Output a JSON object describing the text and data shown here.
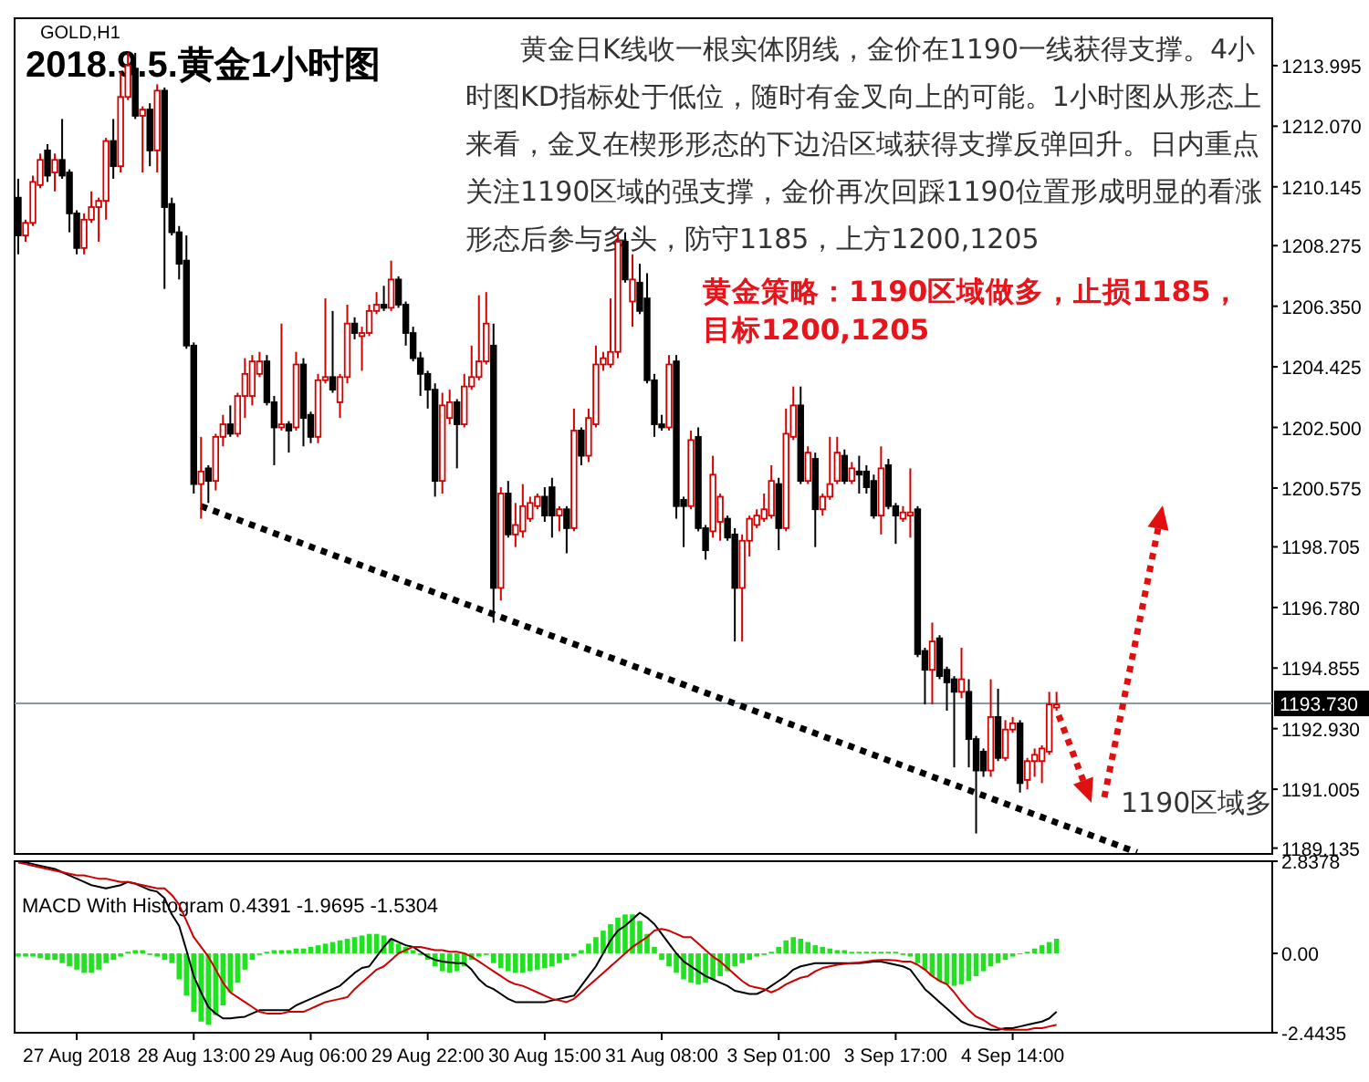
{
  "chart_data": [
    {
      "type": "candlestick",
      "title": "2018.9.5.黄金1小时图",
      "subtitle": "GOLD,H1",
      "categories": [
        null,
        null,
        null,
        null,
        null,
        null,
        null,
        null,
        null,
        null,
        null,
        null,
        null,
        null,
        null,
        null,
        null,
        null,
        null,
        null,
        null,
        null,
        null,
        null,
        null,
        null,
        null,
        null,
        null,
        null,
        null,
        null,
        null,
        null,
        null,
        null,
        null,
        null,
        null,
        null,
        null,
        null,
        null,
        null,
        null,
        null,
        null,
        null,
        null,
        null,
        null,
        null,
        null,
        null,
        null,
        null,
        null,
        null,
        null,
        null,
        null,
        null,
        null,
        null,
        null,
        null,
        null,
        null,
        null,
        null,
        null,
        null,
        null,
        null,
        null,
        null,
        null,
        null,
        null,
        null,
        null,
        null,
        null,
        null,
        null,
        null,
        null,
        null,
        null,
        null,
        null,
        null,
        null,
        null,
        null,
        null,
        null,
        null,
        null,
        null,
        null,
        null,
        null,
        null,
        null,
        null,
        null,
        null,
        null,
        null,
        null,
        null,
        null,
        null,
        null,
        null,
        null,
        null,
        null,
        null,
        null,
        null,
        null,
        null,
        null,
        null,
        null,
        null,
        null,
        null,
        null,
        null,
        null,
        null,
        null,
        null,
        null,
        null,
        null,
        null,
        null,
        null,
        null,
        null,
        null,
        null,
        null,
        null,
        null,
        null,
        null,
        null,
        null,
        null,
        null,
        null,
        null,
        null,
        null,
        null,
        null,
        null,
        null,
        null,
        null,
        null,
        null,
        null,
        null,
        null,
        null,
        null
      ],
      "ohlc": [
        [
          1209.8,
          1210.4,
          1208.0,
          1208.6
        ],
        [
          1208.6,
          1209.1,
          1208.4,
          1209.0
        ],
        [
          1209.0,
          1210.5,
          1208.9,
          1210.3
        ],
        [
          1210.2,
          1211.2,
          1210.1,
          1211.0
        ],
        [
          1211.3,
          1211.5,
          1210.3,
          1210.5
        ],
        [
          1210.6,
          1211.2,
          1210.0,
          1211.0
        ],
        [
          1211.0,
          1212.3,
          1210.4,
          1210.5
        ],
        [
          1210.6,
          1210.7,
          1208.7,
          1209.3
        ],
        [
          1209.3,
          1209.4,
          1208.0,
          1208.2
        ],
        [
          1208.2,
          1209.3,
          1208.0,
          1209.1
        ],
        [
          1209.1,
          1210.0,
          1209.0,
          1209.5
        ],
        [
          1209.5,
          1209.8,
          1208.4,
          1209.7
        ],
        [
          1209.7,
          1211.7,
          1209.1,
          1211.6
        ],
        [
          1211.6,
          1212.3,
          1210.4,
          1210.8
        ],
        [
          1210.8,
          1213.8,
          1210.6,
          1213.0
        ],
        [
          1213.0,
          1214.4,
          1212.9,
          1214.0
        ],
        [
          1213.9,
          1214.4,
          1212.3,
          1212.4
        ],
        [
          1212.4,
          1212.7,
          1210.6,
          1212.6
        ],
        [
          1212.6,
          1212.8,
          1210.8,
          1211.3
        ],
        [
          1211.3,
          1213.4,
          1210.6,
          1213.2
        ],
        [
          1213.2,
          1213.3,
          1206.9,
          1209.5
        ],
        [
          1209.6,
          1209.8,
          1208.6,
          1208.7
        ],
        [
          1208.7,
          1208.9,
          1207.2,
          1207.7
        ],
        [
          1207.8,
          1208.6,
          1205.0,
          1205.1
        ],
        [
          1205.1,
          1205.2,
          1200.4,
          1200.7
        ],
        [
          1200.7,
          1202.2,
          1199.6,
          1201.1
        ],
        [
          1201.2,
          1201.3,
          1200.1,
          1200.8
        ],
        [
          1200.8,
          1202.3,
          1200.5,
          1202.2
        ],
        [
          1202.2,
          1202.9,
          1201.9,
          1202.6
        ],
        [
          1202.6,
          1203.2,
          1202.2,
          1202.3
        ],
        [
          1202.3,
          1203.6,
          1202.2,
          1203.5
        ],
        [
          1203.5,
          1204.7,
          1202.8,
          1204.2
        ],
        [
          1203.5,
          1204.8,
          1203.2,
          1204.6
        ],
        [
          1204.2,
          1204.9,
          1204.1,
          1204.6
        ],
        [
          1204.6,
          1204.8,
          1203.2,
          1203.3
        ],
        [
          1203.3,
          1203.5,
          1201.3,
          1202.5
        ],
        [
          1202.5,
          1205.8,
          1202.4,
          1202.6
        ],
        [
          1202.6,
          1202.7,
          1201.7,
          1202.4
        ],
        [
          1202.5,
          1204.9,
          1202.4,
          1204.5
        ],
        [
          1204.5,
          1204.7,
          1201.9,
          1202.8
        ],
        [
          1202.9,
          1203.0,
          1202.0,
          1202.2
        ],
        [
          1202.2,
          1204.2,
          1202.0,
          1204.0
        ],
        [
          1204.0,
          1206.6,
          1203.9,
          1204.1
        ],
        [
          1204.1,
          1206.2,
          1203.6,
          1203.7
        ],
        [
          1203.3,
          1204.2,
          1202.8,
          1204.1
        ],
        [
          1204.1,
          1206.4,
          1203.9,
          1205.8
        ],
        [
          1205.8,
          1206.0,
          1205.3,
          1205.5
        ],
        [
          1205.4,
          1205.7,
          1204.3,
          1205.5
        ],
        [
          1205.5,
          1206.4,
          1205.4,
          1206.2
        ],
        [
          1206.2,
          1206.8,
          1206.1,
          1206.4
        ],
        [
          1206.4,
          1207.0,
          1206.2,
          1206.3
        ],
        [
          1206.3,
          1207.8,
          1206.2,
          1207.2
        ],
        [
          1207.2,
          1207.3,
          1206.3,
          1206.4
        ],
        [
          1206.4,
          1206.5,
          1205.1,
          1205.5
        ],
        [
          1205.5,
          1205.7,
          1204.6,
          1204.7
        ],
        [
          1204.7,
          1204.9,
          1203.5,
          1204.2
        ],
        [
          1204.2,
          1204.3,
          1203.1,
          1203.7
        ],
        [
          1203.7,
          1203.9,
          1200.3,
          1200.8
        ],
        [
          1200.8,
          1203.6,
          1200.4,
          1203.2
        ],
        [
          1202.8,
          1203.7,
          1202.6,
          1203.3
        ],
        [
          1203.3,
          1203.4,
          1201.2,
          1202.6
        ],
        [
          1202.6,
          1204.2,
          1202.5,
          1203.8
        ],
        [
          1203.8,
          1205.1,
          1203.7,
          1204.1
        ],
        [
          1204.1,
          1206.7,
          1204.0,
          1204.6
        ],
        [
          1204.6,
          1206.8,
          1204.5,
          1205.8
        ],
        [
          1205.1,
          1205.8,
          1196.3,
          1197.4
        ],
        [
          1197.4,
          1200.6,
          1197.0,
          1200.4
        ],
        [
          1200.4,
          1200.8,
          1199.0,
          1199.1
        ],
        [
          1199.1,
          1200.1,
          1198.7,
          1199.4
        ],
        [
          1199.2,
          1200.7,
          1199.0,
          1200.0
        ],
        [
          1199.6,
          1200.3,
          1199.5,
          1200.1
        ],
        [
          1200.0,
          1200.4,
          1199.9,
          1200.3
        ],
        [
          1200.3,
          1200.6,
          1199.5,
          1199.7
        ],
        [
          1200.6,
          1200.9,
          1199.0,
          1199.7
        ],
        [
          1199.7,
          1200.0,
          1199.2,
          1199.9
        ],
        [
          1199.9,
          1200.0,
          1198.5,
          1199.3
        ],
        [
          1199.3,
          1203.1,
          1199.2,
          1202.4
        ],
        [
          1202.4,
          1202.5,
          1201.3,
          1201.6
        ],
        [
          1201.6,
          1203.1,
          1201.4,
          1202.8
        ],
        [
          1202.6,
          1205.1,
          1202.5,
          1204.5
        ],
        [
          1204.5,
          1204.9,
          1204.3,
          1204.7
        ],
        [
          1204.5,
          1206.6,
          1204.4,
          1204.9
        ],
        [
          1204.9,
          1208.7,
          1204.7,
          1208.4
        ],
        [
          1208.4,
          1208.7,
          1207.1,
          1207.2
        ],
        [
          1206.5,
          1208.0,
          1205.7,
          1207.2
        ],
        [
          1207.1,
          1207.7,
          1206.1,
          1206.2
        ],
        [
          1206.6,
          1207.4,
          1203.9,
          1204.0
        ],
        [
          1204.0,
          1204.2,
          1202.2,
          1202.6
        ],
        [
          1202.6,
          1202.9,
          1202.4,
          1202.5
        ],
        [
          1202.5,
          1204.8,
          1202.4,
          1204.5
        ],
        [
          1204.6,
          1204.8,
          1199.6,
          1200.0
        ],
        [
          1200.2,
          1200.3,
          1198.7,
          1200.0
        ],
        [
          1200.0,
          1202.4,
          1199.9,
          1202.1
        ],
        [
          1202.2,
          1202.5,
          1199.2,
          1199.3
        ],
        [
          1199.3,
          1199.4,
          1198.3,
          1198.6
        ],
        [
          1199.2,
          1201.6,
          1199.0,
          1201.0
        ],
        [
          1199.5,
          1200.4,
          1198.9,
          1200.3
        ],
        [
          1199.6,
          1199.7,
          1198.9,
          1199.0
        ],
        [
          1199.1,
          1199.3,
          1195.7,
          1197.4
        ],
        [
          1197.4,
          1199.1,
          1195.7,
          1198.9
        ],
        [
          1198.9,
          1199.7,
          1198.4,
          1199.6
        ],
        [
          1199.4,
          1199.9,
          1199.3,
          1199.7
        ],
        [
          1199.6,
          1200.4,
          1199.5,
          1199.9
        ],
        [
          1199.7,
          1201.3,
          1199.6,
          1200.8
        ],
        [
          1200.7,
          1200.9,
          1198.6,
          1199.3
        ],
        [
          1199.3,
          1203.1,
          1199.2,
          1202.3
        ],
        [
          1202.2,
          1203.8,
          1202.1,
          1203.2
        ],
        [
          1203.2,
          1203.8,
          1200.7,
          1200.8
        ],
        [
          1200.8,
          1201.9,
          1200.7,
          1201.7
        ],
        [
          1201.5,
          1201.7,
          1198.7,
          1199.9
        ],
        [
          1199.9,
          1200.4,
          1199.7,
          1200.3
        ],
        [
          1200.3,
          1202.2,
          1200.2,
          1200.7
        ],
        [
          1200.8,
          1202.2,
          1200.7,
          1201.7
        ],
        [
          1201.6,
          1201.8,
          1200.7,
          1200.8
        ],
        [
          1200.8,
          1201.4,
          1200.7,
          1201.2
        ],
        [
          1201.1,
          1201.6,
          1200.4,
          1201.0
        ],
        [
          1201.1,
          1201.3,
          1200.4,
          1200.6
        ],
        [
          1200.8,
          1201.0,
          1199.6,
          1199.7
        ],
        [
          1199.7,
          1201.9,
          1199.1,
          1201.2
        ],
        [
          1201.3,
          1201.5,
          1199.9,
          1200.0
        ],
        [
          1200.0,
          1200.1,
          1198.8,
          1199.7
        ],
        [
          1199.6,
          1200.0,
          1199.5,
          1199.8
        ],
        [
          1199.7,
          1201.2,
          1199.0,
          1199.8
        ],
        [
          1199.9,
          1200.0,
          1195.2,
          1195.3
        ],
        [
          1195.4,
          1195.5,
          1193.7,
          1194.8
        ],
        [
          1194.8,
          1196.3,
          1193.7,
          1195.7
        ],
        [
          1195.8,
          1195.9,
          1194.5,
          1194.6
        ],
        [
          1194.8,
          1194.9,
          1193.5,
          1194.4
        ],
        [
          1194.5,
          1194.6,
          1191.7,
          1194.1
        ],
        [
          1194.1,
          1195.5,
          1193.9,
          1194.5
        ],
        [
          1194.1,
          1194.5,
          1191.7,
          1192.6
        ],
        [
          1192.6,
          1192.7,
          1189.6,
          1191.6
        ],
        [
          1192.2,
          1192.3,
          1191.4,
          1191.6
        ],
        [
          1191.6,
          1194.5,
          1191.4,
          1193.3
        ],
        [
          1193.3,
          1194.2,
          1191.9,
          1192.0
        ],
        [
          1192.0,
          1193.2,
          1191.9,
          1192.9
        ],
        [
          1192.9,
          1193.3,
          1192.8,
          1193.1
        ],
        [
          1193.1,
          1193.2,
          1190.9,
          1191.2
        ],
        [
          1191.3,
          1192.0,
          1191.0,
          1191.9
        ],
        [
          1191.9,
          1192.3,
          1191.4,
          1192.1
        ],
        [
          1191.9,
          1192.4,
          1191.2,
          1192.3
        ],
        [
          1192.2,
          1194.1,
          1192.1,
          1193.7
        ],
        [
          1193.6,
          1194.1,
          1193.5,
          1193.7
        ],
        null,
        null,
        null,
        null,
        null,
        null,
        null,
        null,
        null,
        null,
        null,
        null,
        null,
        null,
        null,
        null,
        null,
        null,
        null,
        null,
        null,
        null,
        null,
        null,
        null,
        null,
        null,
        null,
        null
      ],
      "series": [
        {
          "type": "line",
          "color": "#000000",
          "line_style": "dotted",
          "values": [
            null,
            null,
            null,
            null,
            null,
            null,
            null,
            null,
            null,
            null,
            null,
            null,
            null,
            null,
            null,
            null,
            null,
            null,
            null,
            null,
            null,
            null,
            null,
            null,
            null,
            1200.0,
            null,
            null,
            null,
            null,
            null,
            null,
            null,
            null,
            null,
            null,
            null,
            null,
            null,
            null,
            null,
            null,
            null,
            null,
            null,
            null,
            null,
            null,
            null,
            null,
            null,
            null,
            null,
            null,
            null,
            null,
            null,
            null,
            null,
            null,
            null,
            null,
            null,
            null,
            null,
            null,
            null,
            null,
            null,
            null,
            null,
            null,
            null,
            null,
            null,
            null,
            null,
            null,
            null,
            null,
            null,
            null,
            null,
            null,
            null,
            null,
            null,
            null,
            null,
            null,
            null,
            null,
            null,
            null,
            null,
            null,
            null,
            null,
            null,
            null,
            null,
            null,
            null,
            null,
            null,
            null,
            null,
            null,
            null,
            null,
            null,
            null,
            null,
            null,
            null,
            null,
            null,
            null,
            null,
            null,
            null,
            null,
            null,
            null,
            null,
            null,
            null,
            null,
            null,
            null,
            null,
            null,
            null,
            null,
            null,
            null,
            null,
            null,
            null,
            null,
            null,
            null,
            null,
            null,
            null,
            null,
            null,
            null,
            null,
            null,
            null,
            null,
            null,
            1189.0,
            null,
            null,
            null,
            null,
            null,
            null,
            null,
            null,
            null,
            null,
            null,
            null,
            null,
            null,
            null,
            null,
            null,
            null
          ]
        }
      ],
      "ylim": [
        1188.95,
        1215.5
      ],
      "yticks": [
        1213.995,
        {
          "value": 1212.07,
          "label": "1212.070"
        },
        1210.145,
        1208.275,
        {
          "value": 1206.35,
          "label": "1206.350"
        },
        1204.425,
        {
          "value": 1202.5,
          "label": "1202.500"
        },
        1200.575,
        1198.705,
        {
          "value": 1196.78,
          "label": "1196.780"
        },
        1194.855,
        {
          "value": 1192.93,
          "label": "1192.930"
        },
        1191.005,
        1189.135
      ],
      "ref_lines": [
        {
          "axis": "y",
          "value": 1193.73,
          "label": "1193.730",
          "color": "#8a9aa5"
        }
      ],
      "annotations": [
        "黄金日K线收一根实体阴线，金价在1190一线获得支撑。4小时图KD指标处于低位，随时有金叉向上的可能。1小时图从形态上来看，金叉在楔形形态的下边沿区域获得支撑反弹回升。日内重点关注1190区域的强支撑，金价再次回踩1190位置形成明显的看涨形态后参与多头，防守1185，上方1200,1205",
        "黄金策略：1190区域做多，止损1185，目标1200,1205",
        "1190区域多"
      ]
    },
    {
      "type": "bar",
      "title": "MACD With Histogram 0.4391 -1.9695 -1.5304",
      "categories": [
        null,
        null,
        null,
        null,
        null,
        null,
        null,
        null,
        "27 Aug 2018",
        null,
        null,
        null,
        null,
        null,
        null,
        null,
        null,
        null,
        null,
        null,
        null,
        null,
        null,
        null,
        "28 Aug 13:00",
        null,
        null,
        null,
        null,
        null,
        null,
        null,
        null,
        null,
        null,
        null,
        null,
        null,
        null,
        null,
        "29 Aug 06:00",
        null,
        null,
        null,
        null,
        null,
        null,
        null,
        null,
        null,
        null,
        null,
        null,
        null,
        null,
        null,
        "29 Aug 22:00",
        null,
        null,
        null,
        null,
        null,
        null,
        null,
        null,
        null,
        null,
        null,
        null,
        null,
        null,
        null,
        "30 Aug 15:00",
        null,
        null,
        null,
        null,
        null,
        null,
        null,
        null,
        null,
        null,
        null,
        null,
        null,
        null,
        null,
        "31 Aug 08:00",
        null,
        null,
        null,
        null,
        null,
        null,
        null,
        null,
        null,
        null,
        null,
        null,
        null,
        null,
        null,
        "3 Sep 01:00",
        null,
        null,
        null,
        null,
        null,
        null,
        null,
        null,
        null,
        null,
        null,
        null,
        null,
        null,
        null,
        "3 Sep 17:00",
        null,
        null,
        null,
        null,
        null,
        null,
        null,
        null,
        null,
        null,
        null,
        null,
        null,
        null,
        null,
        "4 Sep 14:00",
        null,
        null,
        null,
        null,
        null,
        null,
        null,
        null,
        null,
        null,
        null,
        null,
        null,
        null,
        null,
        null,
        null,
        null,
        null,
        null,
        null,
        null,
        null,
        null,
        null,
        null,
        null,
        null,
        null,
        null,
        null,
        null,
        null,
        null,
        null
      ],
      "series": [
        {
          "type": "bar",
          "color": "#22e022",
          "values": [
            -0.1,
            -0.1,
            -0.1,
            -0.15,
            -0.2,
            -0.2,
            -0.3,
            -0.4,
            -0.5,
            -0.6,
            -0.6,
            -0.5,
            -0.3,
            -0.2,
            -0.1,
            0.05,
            0.1,
            0.1,
            -0.05,
            -0.1,
            -0.2,
            -0.3,
            -0.8,
            -1.3,
            -1.8,
            -2.1,
            -2.2,
            -1.9,
            -1.6,
            -1.2,
            -0.9,
            -0.5,
            -0.2,
            -0.05,
            0.05,
            0.1,
            0.1,
            0.1,
            0.15,
            0.15,
            0.2,
            0.25,
            0.3,
            0.35,
            0.4,
            0.45,
            0.5,
            0.55,
            0.6,
            0.6,
            0.55,
            0.45,
            0.3,
            0.2,
            0.1,
            -0.05,
            -0.2,
            -0.4,
            -0.55,
            -0.6,
            -0.55,
            -0.4,
            -0.2,
            -0.1,
            -0.05,
            -0.3,
            -0.45,
            -0.55,
            -0.6,
            -0.6,
            -0.55,
            -0.5,
            -0.45,
            -0.4,
            -0.3,
            -0.2,
            -0.1,
            0.1,
            0.3,
            0.5,
            0.7,
            0.9,
            1.1,
            1.2,
            1.2,
            1.0,
            0.6,
            0.2,
            -0.2,
            -0.4,
            -0.6,
            -0.8,
            -0.9,
            -0.95,
            -0.9,
            -0.8,
            -0.7,
            -0.55,
            -0.4,
            -0.3,
            -0.2,
            -0.1,
            -0.05,
            0.05,
            0.2,
            0.4,
            0.5,
            0.45,
            0.35,
            0.25,
            0.2,
            0.15,
            0.1,
            0.1,
            0.05,
            0.05,
            0.05,
            0.05,
            0.05,
            0.05,
            0.05,
            -0.05,
            -0.1,
            -0.3,
            -0.5,
            -0.7,
            -0.85,
            -0.95,
            -1.0,
            -0.95,
            -0.85,
            -0.7,
            -0.55,
            -0.4,
            -0.3,
            -0.2,
            -0.1,
            0.0,
            0.05,
            0.15,
            0.25,
            0.35,
            0.45,
            null,
            null,
            null,
            null,
            null,
            null,
            null,
            null,
            null,
            null,
            null,
            null,
            null,
            null,
            null,
            null,
            null,
            null,
            null,
            null,
            null,
            null,
            null,
            null,
            null,
            null,
            null,
            null,
            null
          ]
        },
        {
          "type": "line",
          "color": "#000000",
          "values": [
            2.8,
            2.8,
            2.75,
            2.7,
            2.65,
            2.6,
            2.5,
            2.4,
            2.3,
            2.2,
            2.1,
            2.05,
            2.0,
            2.05,
            2.1,
            2.2,
            2.15,
            2.05,
            1.95,
            1.9,
            1.7,
            1.2,
            0.85,
            0.1,
            -0.7,
            -1.2,
            -1.65,
            -1.85,
            -2.0,
            -2.0,
            -1.97,
            -1.95,
            -1.85,
            -1.75,
            -1.75,
            -1.75,
            -1.75,
            -1.75,
            -1.6,
            -1.5,
            -1.4,
            -1.3,
            -1.2,
            -1.1,
            -1.0,
            -0.8,
            -0.6,
            -0.45,
            -0.4,
            -0.1,
            0.2,
            0.45,
            0.35,
            0.25,
            0.2,
            0.05,
            -0.1,
            -0.2,
            -0.25,
            -0.28,
            -0.3,
            -0.3,
            -0.5,
            -0.8,
            -1.0,
            -1.1,
            -1.25,
            -1.4,
            -1.5,
            -1.5,
            -1.5,
            -1.5,
            -1.5,
            -1.45,
            -1.4,
            -1.35,
            -1.3,
            -1.0,
            -0.7,
            -0.4,
            0.0,
            0.4,
            0.7,
            0.85,
            1.05,
            1.25,
            1.1,
            0.9,
            0.6,
            0.3,
            0.0,
            -0.25,
            -0.4,
            -0.55,
            -0.7,
            -0.8,
            -0.9,
            -1.0,
            -1.15,
            -1.2,
            -1.25,
            -1.25,
            -1.15,
            -1.0,
            -0.85,
            -0.7,
            -0.5,
            -0.4,
            -0.35,
            -0.3,
            -0.3,
            -0.3,
            -0.3,
            -0.3,
            -0.3,
            -0.3,
            -0.28,
            -0.25,
            -0.25,
            -0.3,
            -0.35,
            -0.4,
            -0.5,
            -0.8,
            -1.1,
            -1.3,
            -1.5,
            -1.7,
            -1.9,
            -2.1,
            -2.2,
            -2.25,
            -2.3,
            -2.35,
            -2.35,
            -2.3,
            -2.3,
            -2.25,
            -2.2,
            -2.15,
            -2.1,
            -2.0,
            -1.8,
            null,
            null,
            null,
            null,
            null,
            null,
            null,
            null,
            null,
            null,
            null,
            null,
            null,
            null,
            null,
            null,
            null,
            null,
            null,
            null,
            null,
            null,
            null,
            null,
            null,
            null,
            null,
            null,
            null
          ]
        },
        {
          "type": "line",
          "color": "#cc0000",
          "values": [
            2.8,
            2.75,
            2.7,
            2.65,
            2.6,
            2.55,
            2.5,
            2.45,
            2.4,
            2.4,
            2.35,
            2.3,
            2.3,
            2.25,
            2.2,
            2.2,
            2.15,
            2.1,
            2.05,
            2.0,
            2.0,
            1.8,
            1.5,
            1.0,
            0.5,
            0.2,
            -0.1,
            -0.5,
            -0.9,
            -1.2,
            -1.35,
            -1.5,
            -1.65,
            -1.8,
            -1.85,
            -1.85,
            -1.85,
            -1.8,
            -1.8,
            -1.8,
            -1.7,
            -1.6,
            -1.5,
            -1.45,
            -1.4,
            -1.35,
            -1.1,
            -0.9,
            -0.7,
            -0.5,
            -0.4,
            -0.2,
            0.0,
            0.1,
            0.2,
            0.2,
            0.15,
            0.1,
            0.1,
            0.05,
            0.05,
            0.0,
            -0.1,
            -0.25,
            -0.4,
            -0.55,
            -0.7,
            -0.85,
            -0.95,
            -1.0,
            -1.1,
            -1.2,
            -1.3,
            -1.4,
            -1.45,
            -1.5,
            -1.4,
            -1.2,
            -1.0,
            -0.8,
            -0.6,
            -0.4,
            -0.2,
            0.0,
            0.2,
            0.35,
            0.5,
            0.7,
            0.75,
            0.7,
            0.6,
            0.5,
            0.5,
            0.3,
            0.1,
            -0.1,
            -0.25,
            -0.45,
            -0.65,
            -0.85,
            -1.0,
            -1.05,
            -1.1,
            -1.2,
            -1.1,
            -0.95,
            -0.85,
            -0.75,
            -0.7,
            -0.55,
            -0.45,
            -0.4,
            -0.35,
            -0.32,
            -0.3,
            -0.28,
            -0.25,
            -0.22,
            -0.2,
            -0.2,
            -0.22,
            -0.25,
            -0.25,
            -0.35,
            -0.5,
            -0.7,
            -0.85,
            -0.95,
            -1.2,
            -1.5,
            -1.75,
            -1.95,
            -2.05,
            -2.2,
            -2.3,
            -2.35,
            -2.35,
            -2.35,
            -2.35,
            -2.3,
            -2.3,
            -2.25,
            -2.2,
            null,
            null,
            null,
            null,
            null,
            null,
            null,
            null,
            null,
            null,
            null,
            null,
            null,
            null,
            null,
            null,
            null,
            null,
            null,
            null,
            null,
            null,
            null,
            null,
            null,
            null,
            null,
            null,
            null
          ]
        }
      ],
      "ylim": [
        -2.4435,
        2.8378
      ],
      "yticks": [
        2.8378,
        {
          "value": 0,
          "label": "0.00"
        },
        -2.4435
      ]
    }
  ]
}
